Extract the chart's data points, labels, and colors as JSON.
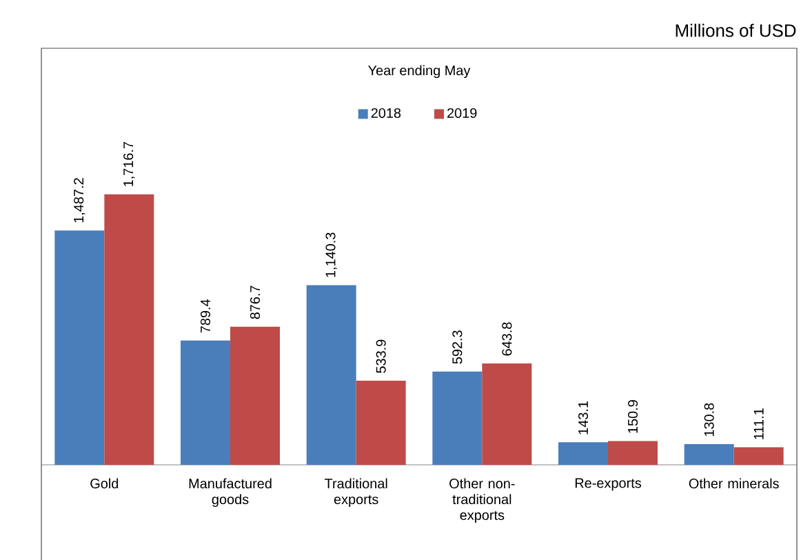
{
  "chart_data": {
    "type": "bar",
    "subtitle": "Millions of USD",
    "legend_title": "Year ending May",
    "legend": "top",
    "categories": [
      "Gold",
      "Manufactured goods",
      "Traditional exports",
      "Other non-traditional exports",
      "Re-exports",
      "Other minerals"
    ],
    "series": [
      {
        "name": "2018",
        "color": "#4a7ebb",
        "values": [
          1487.2,
          789.4,
          1140.3,
          592.3,
          143.1,
          130.8
        ],
        "value_labels": [
          "1,487.2",
          "789.4",
          "1,140.3",
          "592.3",
          "143.1",
          "130.8"
        ]
      },
      {
        "name": "2019",
        "color": "#be4b48",
        "values": [
          1716.7,
          876.7,
          533.9,
          643.8,
          150.9,
          111.1
        ],
        "value_labels": [
          "1,716.7",
          "876.7",
          "533.9",
          "643.8",
          "150.9",
          "111.1"
        ]
      }
    ]
  }
}
